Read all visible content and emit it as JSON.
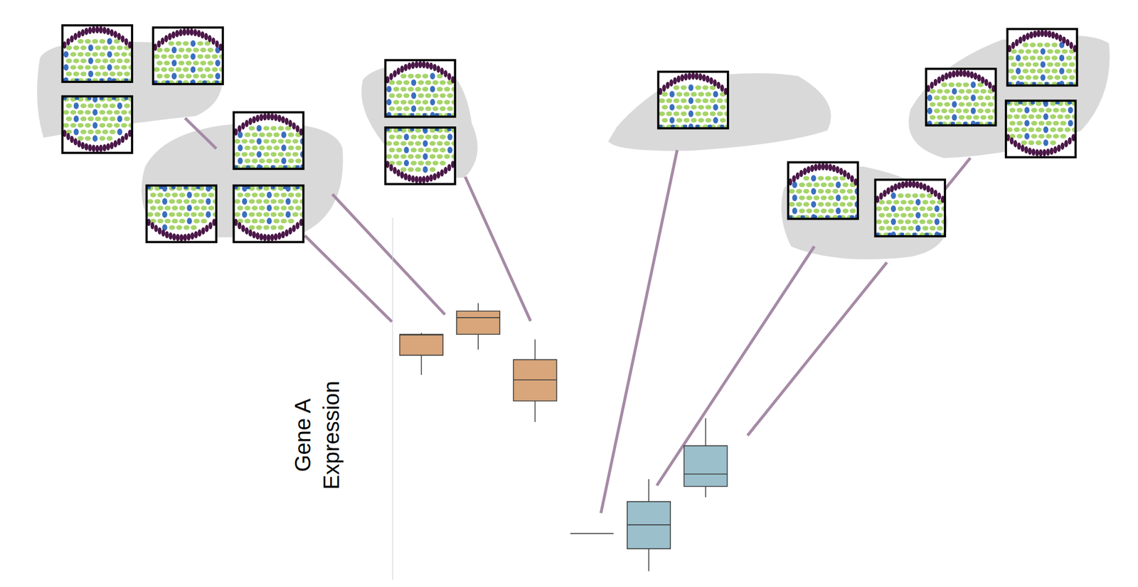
{
  "chart_data": {
    "type": "box",
    "y_label": "Gene A\nExpression",
    "categories": [
      null,
      null,
      null,
      null,
      null,
      null
    ],
    "ylim": [
      0,
      5
    ],
    "tick_labels": false,
    "grid": false,
    "boxes": [
      {
        "color": "#d8a67a",
        "lower": 2.83,
        "q1": 3.1,
        "median": 3.38,
        "q3": 3.39,
        "upper": 3.41
      },
      {
        "color": "#d8a67a",
        "lower": 3.18,
        "q1": 3.39,
        "median": 3.62,
        "q3": 3.71,
        "upper": 3.82
      },
      {
        "color": "#d8a67a",
        "lower": 2.18,
        "q1": 2.47,
        "median": 2.76,
        "q3": 3.04,
        "upper": 3.32
      },
      {
        "color": "#9bbfcb",
        "lower": 0.64,
        "q1": 0.64,
        "median": 0.64,
        "q3": 0.64,
        "upper": 0.64
      },
      {
        "color": "#9bbfcb",
        "lower": 0.12,
        "q1": 0.43,
        "median": 0.76,
        "q3": 1.08,
        "upper": 1.39
      },
      {
        "color": "#9bbfcb",
        "lower": 1.14,
        "q1": 1.29,
        "median": 1.46,
        "q3": 1.85,
        "upper": 2.23
      }
    ]
  }
}
